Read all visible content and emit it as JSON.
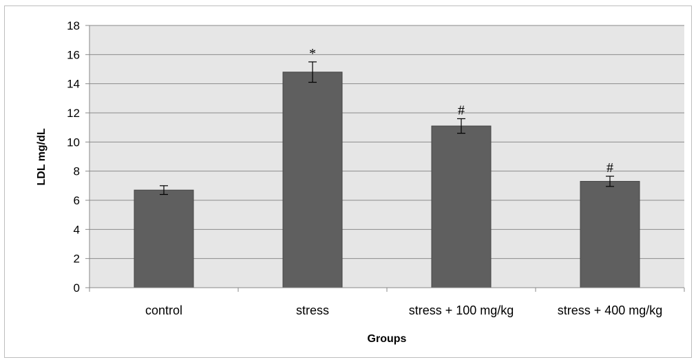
{
  "chart_data": {
    "type": "bar",
    "title": "",
    "xlabel": "Groups",
    "ylabel": "LDL mg/dL",
    "categories": [
      "control",
      "stress",
      "stress + 100 mg/kg",
      "stress + 400 mg/kg"
    ],
    "values": [
      6.7,
      14.8,
      11.1,
      7.3
    ],
    "error": [
      0.3,
      0.7,
      0.5,
      0.35
    ],
    "annotations": [
      "",
      "*",
      "#",
      "#"
    ],
    "ylim": [
      0,
      18
    ],
    "yticks": [
      0,
      2,
      4,
      6,
      8,
      10,
      12,
      14,
      16,
      18
    ],
    "grid": true,
    "legend": "none",
    "colors": {
      "bar": "#5f5f5f",
      "bar_edge": "#454545",
      "plot_bg": "#e6e6e6",
      "grid": "#8a8a8a"
    }
  }
}
